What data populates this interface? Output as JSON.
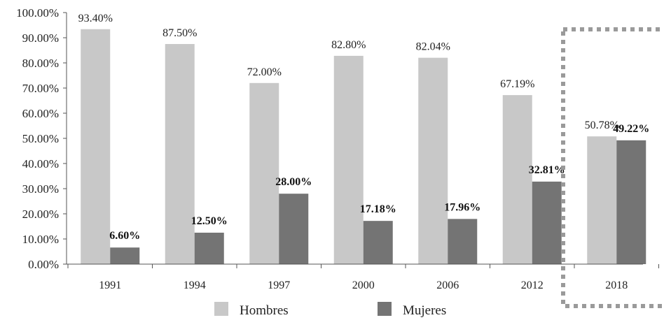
{
  "chart_data": {
    "type": "bar",
    "categories": [
      "1991",
      "1994",
      "1997",
      "2000",
      "2006",
      "2012",
      "2018"
    ],
    "series": [
      {
        "name": "Hombres",
        "values": [
          93.4,
          87.5,
          72.0,
          82.8,
          82.04,
          67.19,
          50.78
        ],
        "labels": [
          "93.40%",
          "87.50%",
          "72.00%",
          "82.80%",
          "82.04%",
          "67.19%",
          "50.78%"
        ],
        "color": "#c8c8c8"
      },
      {
        "name": "Mujeres",
        "values": [
          6.6,
          12.5,
          28.0,
          17.18,
          17.96,
          32.81,
          49.22
        ],
        "labels": [
          "6.60%",
          "12.50%",
          "28.00%",
          "17.18%",
          "17.96%",
          "32.81%",
          "49.22%"
        ],
        "color": "#747474"
      }
    ],
    "y_ticks": [
      "0.00%",
      "10.00%",
      "20.00%",
      "30.00%",
      "40.00%",
      "50.00%",
      "60.00%",
      "70.00%",
      "80.00%",
      "90.00%",
      "100.00%"
    ],
    "ylim": [
      0,
      100
    ],
    "legend_position": "bottom",
    "highlight_category": "2018",
    "highlight_style": "dotted box",
    "grid": false
  }
}
